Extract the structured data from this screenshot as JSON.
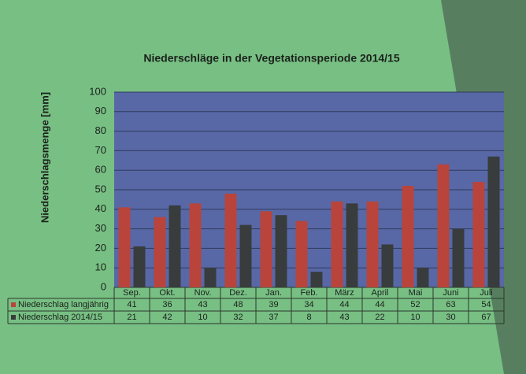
{
  "chart_data": {
    "type": "bar",
    "title": "Niederschläge in der Vegetationsperiode 2014/15",
    "y_label": "Niederschlagsmenge  [mm]",
    "categories": [
      "Sep.",
      "Okt.",
      "Nov.",
      "Dez.",
      "Jan.",
      "Feb.",
      "März",
      "April",
      "Mai",
      "Juni",
      "Juli"
    ],
    "series": [
      {
        "name": "Niederschlag langjährig",
        "color": "#b8443c",
        "values": [
          41,
          36,
          43,
          48,
          39,
          34,
          44,
          44,
          52,
          63,
          54
        ]
      },
      {
        "name": "Niederschlag 2014/15",
        "color": "#383c3c",
        "values": [
          21,
          42,
          10,
          32,
          37,
          8,
          43,
          22,
          10,
          30,
          67
        ]
      }
    ],
    "ylim": [
      0,
      100
    ],
    "yticks": [
      0,
      10,
      20,
      30,
      40,
      50,
      60,
      70,
      80,
      90,
      100
    ],
    "grid": true
  }
}
